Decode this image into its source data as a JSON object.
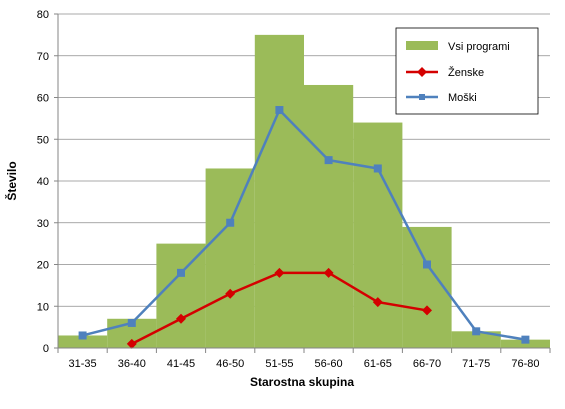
{
  "chart_data": {
    "type": "bar",
    "categories": [
      "31-35",
      "36-40",
      "41-45",
      "46-50",
      "51-55",
      "56-60",
      "61-65",
      "66-70",
      "71-75",
      "76-80"
    ],
    "series": [
      {
        "name": "Vsi programi",
        "kind": "bar",
        "color": "#9bbb59",
        "values": [
          3,
          7,
          25,
          43,
          75,
          63,
          54,
          29,
          4,
          2
        ]
      },
      {
        "name": "Ženske",
        "kind": "line",
        "marker": "diamond",
        "color": "#d40000",
        "values": [
          null,
          1,
          7,
          13,
          18,
          18,
          11,
          9,
          null,
          null
        ]
      },
      {
        "name": "Moški",
        "kind": "line",
        "marker": "square",
        "color": "#4f81bd",
        "values": [
          3,
          6,
          18,
          30,
          57,
          45,
          43,
          20,
          4,
          2
        ]
      }
    ],
    "yticks": [
      "0",
      "10",
      "20",
      "30",
      "40",
      "50",
      "60",
      "70",
      "80"
    ],
    "ylim": [
      0,
      80
    ],
    "xlabel": "Starostna skupina",
    "ylabel": "Število",
    "grid": true,
    "legend_position": "top-right"
  }
}
